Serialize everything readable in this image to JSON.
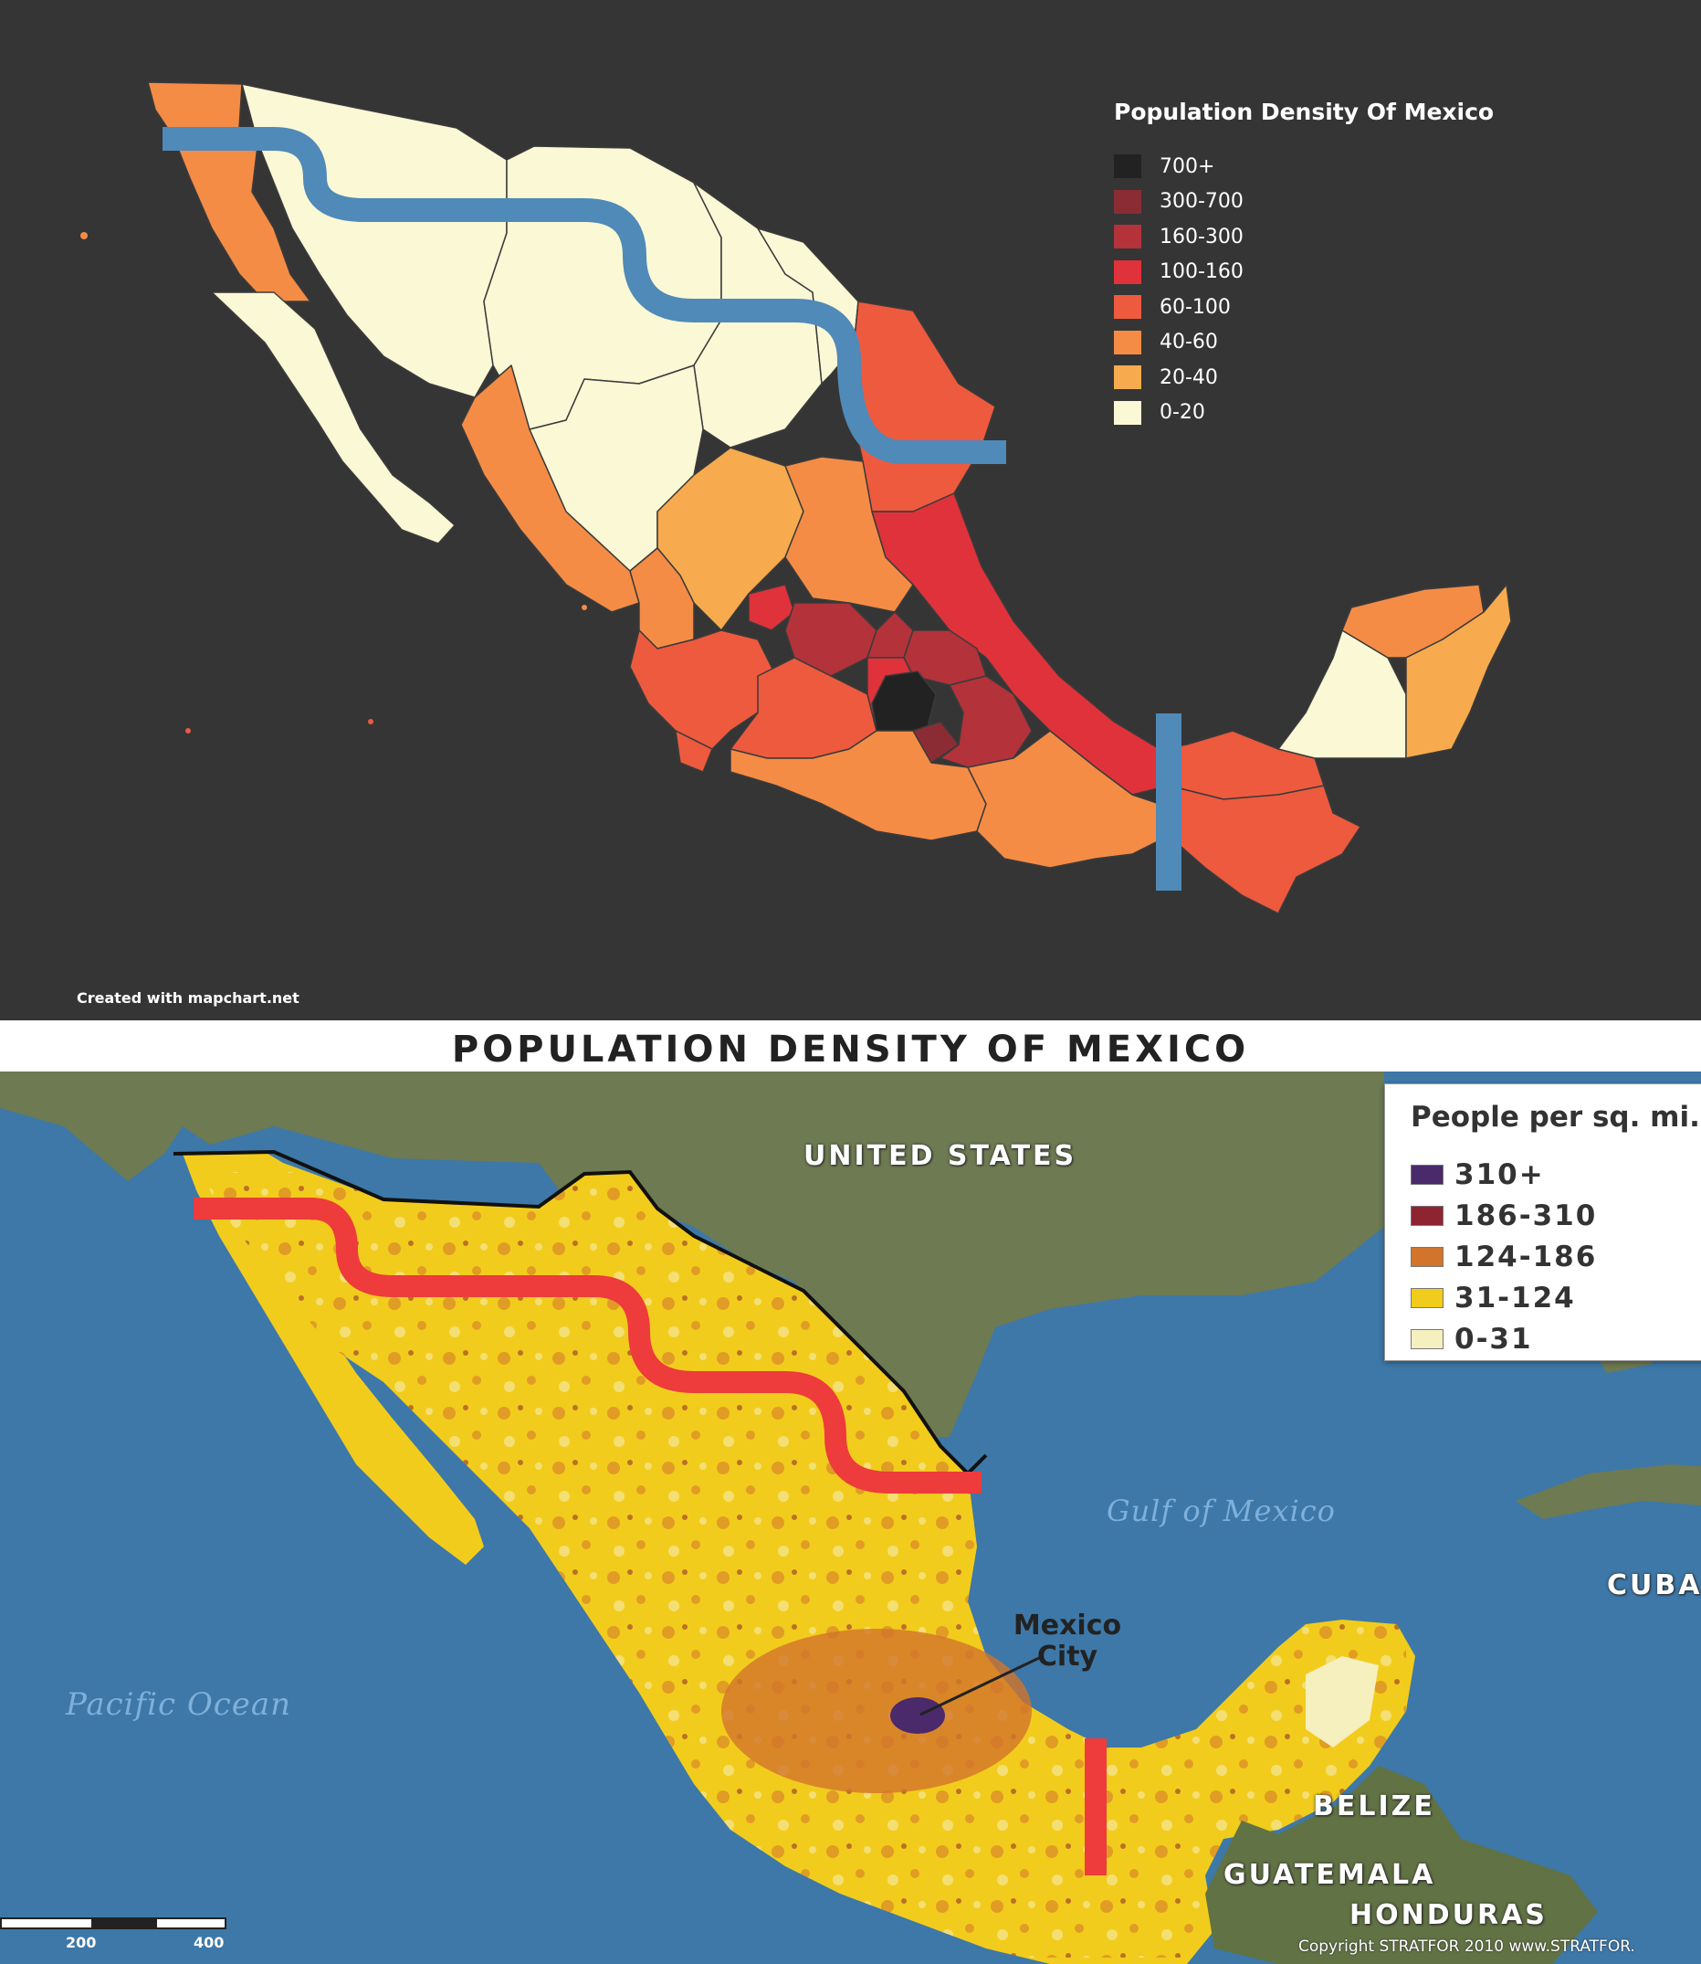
{
  "top_map": {
    "legend_title": "Population Density Of Mexico",
    "legend": [
      {
        "label": "700+",
        "color": "#222222"
      },
      {
        "label": "300-700",
        "color": "#8b2c35"
      },
      {
        "label": "160-300",
        "color": "#b4323a"
      },
      {
        "label": "100-160",
        "color": "#e0323a"
      },
      {
        "label": "60-100",
        "color": "#ee5a3e"
      },
      {
        "label": "40-60",
        "color": "#f58c46"
      },
      {
        "label": "20-40",
        "color": "#f7ab4e"
      },
      {
        "label": "0-20",
        "color": "#fbf8d6"
      }
    ],
    "credit": "Created with mapchart.net",
    "background_color": "#353535",
    "divider_line_color": "#4f8ab8"
  },
  "bottom_map": {
    "title": "POPULATION DENSITY OF MEXICO",
    "legend_title": "People per sq. mi.",
    "legend": [
      {
        "label": "310+",
        "color": "#4a2a6b"
      },
      {
        "label": "186-310",
        "color": "#8e2430"
      },
      {
        "label": "124-186",
        "color": "#d2742c"
      },
      {
        "label": "31-124",
        "color": "#f2cc1c"
      },
      {
        "label": "0-31",
        "color": "#f6efbe"
      }
    ],
    "labels": {
      "united_states": "UNITED STATES",
      "gulf": "Gulf of Mexico",
      "cuba": "CUBA",
      "pacific": "Pacific Ocean",
      "mexico_city": "Mexico City",
      "belize": "BELIZE",
      "guatemala": "GUATEMALA",
      "honduras": "HONDURAS"
    },
    "scale_ticks": [
      "200",
      "400"
    ],
    "copyright": "Copyright STRATFOR 2010     www.STRATFOR.",
    "divider_line_color": "#ee3b3b"
  }
}
